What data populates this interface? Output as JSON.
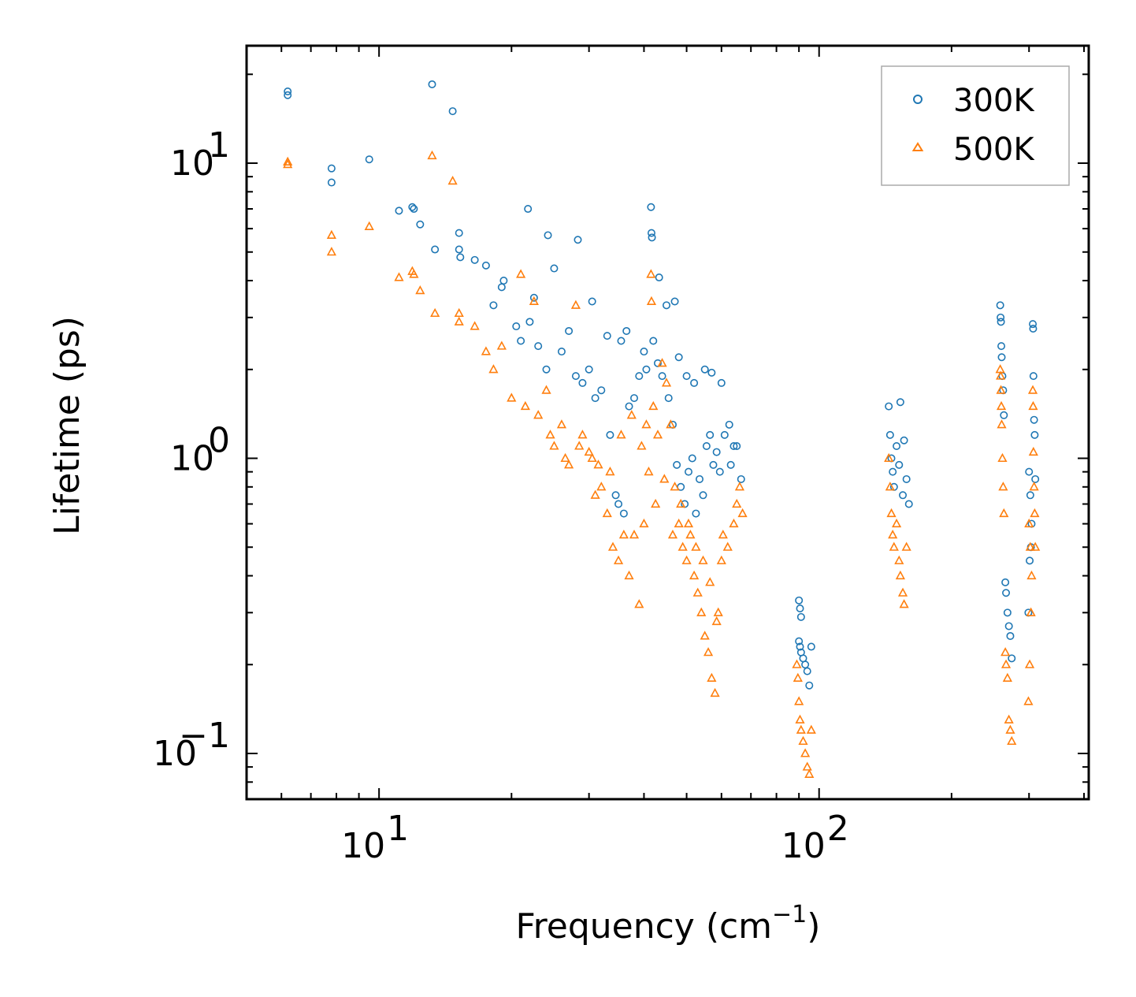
{
  "chart_data": {
    "type": "scatter",
    "title": "",
    "xlabel": "Frequency (cm",
    "xlabel_sup": "−1",
    "xlabel_close": ")",
    "ylabel": "Lifetime (ps)",
    "xscale": "log",
    "yscale": "log",
    "xlim": [
      5,
      410
    ],
    "ylim": [
      0.07,
      25
    ],
    "x_tick_labels": [
      {
        "value": 10,
        "base": "10",
        "exp": "1"
      },
      {
        "value": 100,
        "base": "10",
        "exp": "2"
      }
    ],
    "y_tick_labels": [
      {
        "value": 0.1,
        "base": "10",
        "exp": "−1"
      },
      {
        "value": 1,
        "base": "10",
        "exp": "0"
      },
      {
        "value": 10,
        "base": "10",
        "exp": "1"
      }
    ],
    "legend_position": "top-right",
    "series": [
      {
        "name": "300K",
        "marker": "circle",
        "color": "#1f77b4",
        "points": [
          [
            6.2,
            17.5
          ],
          [
            6.2,
            17.0
          ],
          [
            7.8,
            9.6
          ],
          [
            7.8,
            8.6
          ],
          [
            9.5,
            10.3
          ],
          [
            11.1,
            6.9
          ],
          [
            11.9,
            7.1
          ],
          [
            12.0,
            7.0
          ],
          [
            12.4,
            6.2
          ],
          [
            13.2,
            18.5
          ],
          [
            14.7,
            15.0
          ],
          [
            13.4,
            5.1
          ],
          [
            15.2,
            5.8
          ],
          [
            15.2,
            5.1
          ],
          [
            16.5,
            4.7
          ],
          [
            15.3,
            4.8
          ],
          [
            17.5,
            4.5
          ],
          [
            18.2,
            3.3
          ],
          [
            19.2,
            4.0
          ],
          [
            19.0,
            3.8
          ],
          [
            21.8,
            7.0
          ],
          [
            22.5,
            3.5
          ],
          [
            24.2,
            5.7
          ],
          [
            25.0,
            4.4
          ],
          [
            28.3,
            5.5
          ],
          [
            30.5,
            3.4
          ],
          [
            33.0,
            2.6
          ],
          [
            35.5,
            2.5
          ],
          [
            36.5,
            2.7
          ],
          [
            40.0,
            2.3
          ],
          [
            41.5,
            7.1
          ],
          [
            41.6,
            5.8
          ],
          [
            41.7,
            5.6
          ],
          [
            43.3,
            4.1
          ],
          [
            45.0,
            3.3
          ],
          [
            47.0,
            3.4
          ],
          [
            48.0,
            2.2
          ],
          [
            50.0,
            1.9
          ],
          [
            52.0,
            1.8
          ],
          [
            55.0,
            2.0
          ],
          [
            57.0,
            1.95
          ],
          [
            60.0,
            1.8
          ],
          [
            62.5,
            1.3
          ],
          [
            65.0,
            1.1
          ],
          [
            66.5,
            0.85
          ],
          [
            20.5,
            2.8
          ],
          [
            21.0,
            2.5
          ],
          [
            22.0,
            2.9
          ],
          [
            23.0,
            2.4
          ],
          [
            24.0,
            2.0
          ],
          [
            26.0,
            2.3
          ],
          [
            27.0,
            2.7
          ],
          [
            28.0,
            1.9
          ],
          [
            29.0,
            1.8
          ],
          [
            31.0,
            1.6
          ],
          [
            32.0,
            1.7
          ],
          [
            30.0,
            2.0
          ],
          [
            33.5,
            1.2
          ],
          [
            34.5,
            0.75
          ],
          [
            35.0,
            0.7
          ],
          [
            36.0,
            0.65
          ],
          [
            37.0,
            1.5
          ],
          [
            38.0,
            1.6
          ],
          [
            39.0,
            1.9
          ],
          [
            40.5,
            2.0
          ],
          [
            42.0,
            2.5
          ],
          [
            43.0,
            2.1
          ],
          [
            44.0,
            1.9
          ],
          [
            45.5,
            1.6
          ],
          [
            46.5,
            1.3
          ],
          [
            47.5,
            0.95
          ],
          [
            48.5,
            0.8
          ],
          [
            49.5,
            0.7
          ],
          [
            50.5,
            0.9
          ],
          [
            51.5,
            1.0
          ],
          [
            52.5,
            0.65
          ],
          [
            53.5,
            0.85
          ],
          [
            54.5,
            0.75
          ],
          [
            55.5,
            1.1
          ],
          [
            56.5,
            1.2
          ],
          [
            57.5,
            0.95
          ],
          [
            58.5,
            1.05
          ],
          [
            59.5,
            0.9
          ],
          [
            61.0,
            1.2
          ],
          [
            63.0,
            0.95
          ],
          [
            64.0,
            1.1
          ],
          [
            90.0,
            0.33
          ],
          [
            90.5,
            0.31
          ],
          [
            91.0,
            0.29
          ],
          [
            90.0,
            0.24
          ],
          [
            90.5,
            0.23
          ],
          [
            91.0,
            0.22
          ],
          [
            92.0,
            0.21
          ],
          [
            93.0,
            0.2
          ],
          [
            94.0,
            0.19
          ],
          [
            95.0,
            0.17
          ],
          [
            96.0,
            0.23
          ],
          [
            144.0,
            1.5
          ],
          [
            145.0,
            1.2
          ],
          [
            146.0,
            1.0
          ],
          [
            147.0,
            0.9
          ],
          [
            148.0,
            0.8
          ],
          [
            150.0,
            1.1
          ],
          [
            152.0,
            0.95
          ],
          [
            153.0,
            1.55
          ],
          [
            155.0,
            0.75
          ],
          [
            156.0,
            1.15
          ],
          [
            158.0,
            0.85
          ],
          [
            160.0,
            0.7
          ],
          [
            258.0,
            3.3
          ],
          [
            258.5,
            3.0
          ],
          [
            259.0,
            2.9
          ],
          [
            259.5,
            2.4
          ],
          [
            260.0,
            2.2
          ],
          [
            261.0,
            1.9
          ],
          [
            262.0,
            1.7
          ],
          [
            263.0,
            1.4
          ],
          [
            265.0,
            0.38
          ],
          [
            266.0,
            0.35
          ],
          [
            268.0,
            0.3
          ],
          [
            270.0,
            0.27
          ],
          [
            272.0,
            0.25
          ],
          [
            274.0,
            0.21
          ],
          [
            300.0,
            0.9
          ],
          [
            302.0,
            0.75
          ],
          [
            304.0,
            0.6
          ],
          [
            306.0,
            2.85
          ],
          [
            306.5,
            2.75
          ],
          [
            307.0,
            1.9
          ],
          [
            308.0,
            1.35
          ],
          [
            309.0,
            1.2
          ],
          [
            310.0,
            0.85
          ],
          [
            303.0,
            0.5
          ],
          [
            301.0,
            0.45
          ],
          [
            299.0,
            0.3
          ]
        ]
      },
      {
        "name": "500K",
        "marker": "triangle",
        "color": "#ff7f0e",
        "points": [
          [
            6.2,
            10.1
          ],
          [
            6.2,
            9.9
          ],
          [
            7.8,
            5.7
          ],
          [
            7.8,
            5.0
          ],
          [
            9.5,
            6.1
          ],
          [
            11.1,
            4.1
          ],
          [
            11.9,
            4.3
          ],
          [
            12.0,
            4.2
          ],
          [
            12.4,
            3.7
          ],
          [
            13.2,
            10.6
          ],
          [
            14.7,
            8.7
          ],
          [
            13.4,
            3.1
          ],
          [
            15.2,
            3.1
          ],
          [
            15.2,
            2.9
          ],
          [
            16.5,
            2.8
          ],
          [
            17.5,
            2.3
          ],
          [
            18.2,
            2.0
          ],
          [
            19.0,
            2.4
          ],
          [
            20.0,
            1.6
          ],
          [
            21.0,
            4.2
          ],
          [
            22.5,
            3.4
          ],
          [
            24.0,
            1.7
          ],
          [
            25.0,
            1.1
          ],
          [
            26.0,
            1.3
          ],
          [
            27.0,
            0.95
          ],
          [
            28.0,
            3.3
          ],
          [
            29.0,
            1.2
          ],
          [
            30.5,
            1.0
          ],
          [
            31.5,
            0.95
          ],
          [
            32.0,
            0.8
          ],
          [
            33.0,
            0.65
          ],
          [
            34.0,
            0.5
          ],
          [
            35.0,
            0.45
          ],
          [
            36.0,
            0.55
          ],
          [
            37.0,
            0.4
          ],
          [
            38.0,
            0.55
          ],
          [
            39.0,
            0.32
          ],
          [
            40.0,
            0.6
          ],
          [
            41.0,
            0.9
          ],
          [
            41.5,
            4.2
          ],
          [
            41.6,
            3.4
          ],
          [
            42.0,
            1.5
          ],
          [
            43.0,
            1.2
          ],
          [
            44.0,
            2.1
          ],
          [
            45.0,
            1.8
          ],
          [
            46.0,
            1.3
          ],
          [
            47.0,
            0.8
          ],
          [
            48.0,
            0.6
          ],
          [
            49.0,
            0.5
          ],
          [
            50.0,
            0.45
          ],
          [
            51.0,
            0.55
          ],
          [
            52.0,
            0.4
          ],
          [
            53.0,
            0.35
          ],
          [
            54.0,
            0.3
          ],
          [
            55.0,
            0.25
          ],
          [
            56.0,
            0.22
          ],
          [
            57.0,
            0.18
          ],
          [
            58.0,
            0.16
          ],
          [
            59.0,
            0.3
          ],
          [
            60.0,
            0.45
          ],
          [
            62.0,
            0.5
          ],
          [
            64.0,
            0.6
          ],
          [
            65.0,
            0.7
          ],
          [
            66.0,
            0.8
          ],
          [
            67.0,
            0.65
          ],
          [
            21.5,
            1.5
          ],
          [
            23.0,
            1.4
          ],
          [
            24.5,
            1.2
          ],
          [
            26.5,
            1.0
          ],
          [
            28.5,
            1.1
          ],
          [
            30.0,
            1.05
          ],
          [
            31.0,
            0.75
          ],
          [
            33.5,
            0.9
          ],
          [
            35.5,
            1.2
          ],
          [
            37.5,
            1.4
          ],
          [
            39.5,
            1.1
          ],
          [
            40.5,
            1.3
          ],
          [
            42.5,
            0.7
          ],
          [
            44.5,
            0.85
          ],
          [
            46.5,
            0.55
          ],
          [
            48.5,
            0.7
          ],
          [
            50.5,
            0.6
          ],
          [
            52.5,
            0.5
          ],
          [
            54.5,
            0.45
          ],
          [
            56.5,
            0.38
          ],
          [
            58.5,
            0.28
          ],
          [
            60.5,
            0.55
          ],
          [
            89.0,
            0.2
          ],
          [
            89.5,
            0.18
          ],
          [
            90.0,
            0.15
          ],
          [
            90.5,
            0.13
          ],
          [
            91.0,
            0.12
          ],
          [
            92.0,
            0.11
          ],
          [
            93.0,
            0.1
          ],
          [
            94.0,
            0.09
          ],
          [
            95.0,
            0.085
          ],
          [
            96.0,
            0.12
          ],
          [
            144.0,
            1.0
          ],
          [
            145.0,
            0.8
          ],
          [
            146.0,
            0.65
          ],
          [
            147.0,
            0.55
          ],
          [
            148.0,
            0.5
          ],
          [
            150.0,
            0.6
          ],
          [
            152.0,
            0.45
          ],
          [
            153.0,
            0.4
          ],
          [
            155.0,
            0.35
          ],
          [
            156.0,
            0.32
          ],
          [
            158.0,
            0.5
          ],
          [
            258.0,
            2.0
          ],
          [
            258.5,
            1.9
          ],
          [
            259.0,
            1.7
          ],
          [
            259.5,
            1.5
          ],
          [
            260.0,
            1.3
          ],
          [
            261.0,
            1.0
          ],
          [
            262.0,
            0.8
          ],
          [
            263.0,
            0.65
          ],
          [
            265.0,
            0.22
          ],
          [
            266.0,
            0.2
          ],
          [
            268.0,
            0.18
          ],
          [
            270.0,
            0.13
          ],
          [
            272.0,
            0.12
          ],
          [
            274.0,
            0.11
          ],
          [
            300.0,
            0.6
          ],
          [
            302.0,
            0.5
          ],
          [
            304.0,
            0.4
          ],
          [
            306.0,
            1.7
          ],
          [
            306.5,
            1.5
          ],
          [
            307.0,
            1.05
          ],
          [
            308.0,
            0.8
          ],
          [
            309.0,
            0.65
          ],
          [
            310.0,
            0.5
          ],
          [
            303.0,
            0.3
          ],
          [
            301.0,
            0.2
          ],
          [
            299.0,
            0.15
          ]
        ]
      }
    ]
  }
}
